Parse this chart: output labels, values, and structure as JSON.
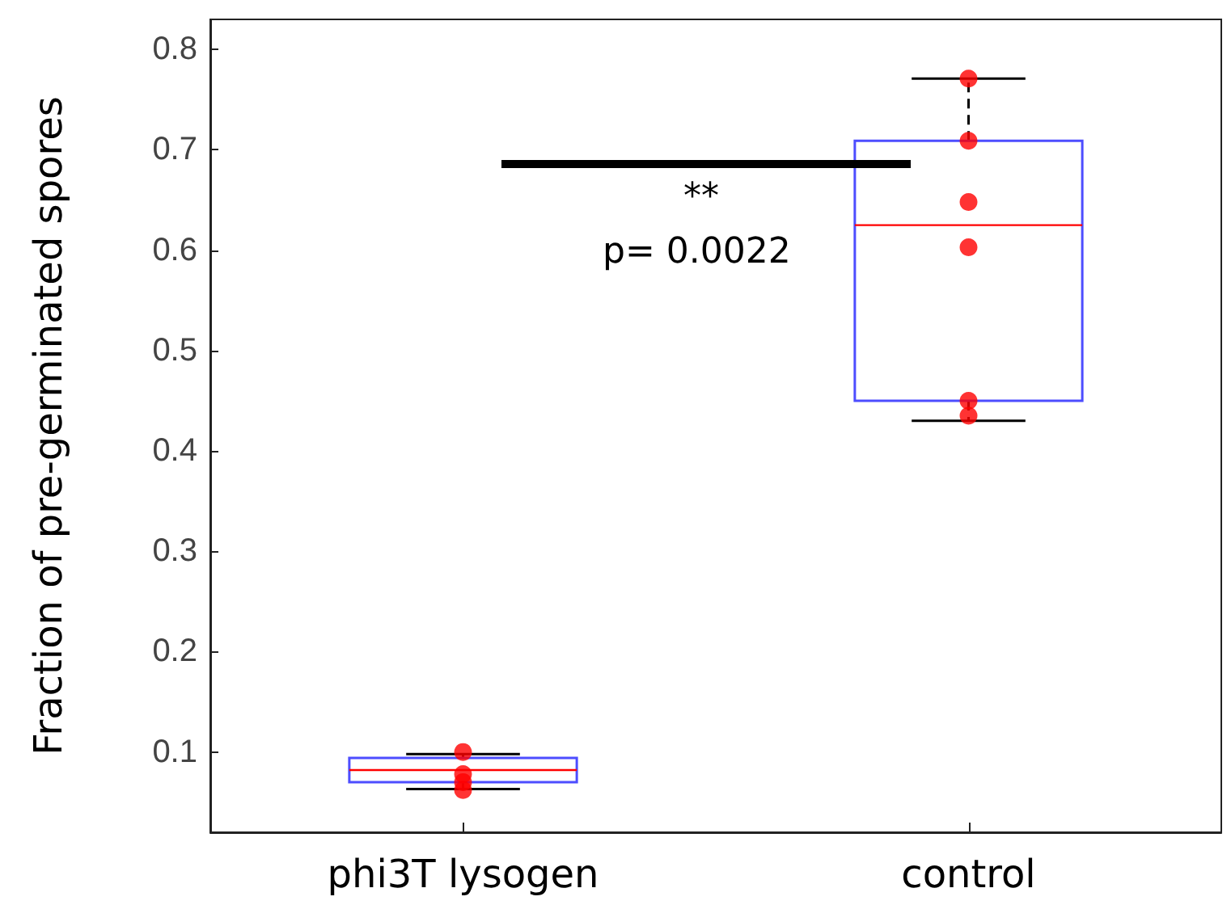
{
  "chart_data": {
    "type": "box",
    "ylabel": "Fraction of pre-germinated spores",
    "categories": [
      "phi3T lysogen",
      "control"
    ],
    "boxes": [
      {
        "low": 0.063,
        "q1": 0.07,
        "median": 0.082,
        "q3": 0.094,
        "high": 0.098
      },
      {
        "low": 0.43,
        "q1": 0.45,
        "median": 0.625,
        "q3": 0.709,
        "high": 0.771
      }
    ],
    "series": [
      {
        "type": "scatter",
        "color": "#ff0000",
        "x": [
          "phi3T lysogen",
          "phi3T lysogen",
          "phi3T lysogen",
          "phi3T lysogen",
          "phi3T lysogen",
          "phi3T lysogen",
          "control",
          "control",
          "control",
          "control",
          "control",
          "control"
        ],
        "values": [
          0.1,
          null,
          null,
          0.078,
          0.07,
          0.062,
          0.771,
          0.709,
          0.648,
          0.603,
          0.45,
          0.435
        ]
      }
    ],
    "ylim": [
      0.02,
      0.83
    ],
    "yticks": [
      0.1,
      0.2,
      0.3,
      0.4,
      0.5,
      0.6,
      0.7,
      0.8
    ],
    "grid": false,
    "marker": "circle",
    "annotations": [
      "**",
      "p= 0.0022"
    ]
  }
}
